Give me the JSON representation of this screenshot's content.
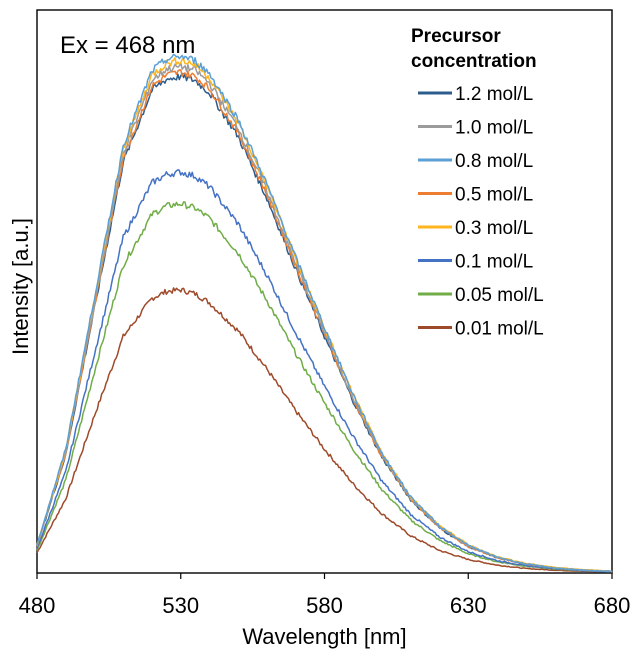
{
  "chart_data": {
    "type": "line",
    "xlabel": "Wavelength [nm]",
    "ylabel": "Intensity [a.u.]",
    "xlim": [
      480,
      680
    ],
    "ylim": [
      0,
      1.0
    ],
    "xticks": [
      480,
      530,
      580,
      630,
      680
    ],
    "xtick_labels": [
      "480",
      "530",
      "580",
      "630",
      "680"
    ],
    "y_tick_labels_shown": false,
    "grid": false,
    "annotation": "Ex = 468 nm",
    "legend": {
      "title_lines": [
        "Precursor",
        "concentration"
      ],
      "placement": "top-right"
    },
    "x": [
      480,
      490,
      500,
      510,
      520,
      525,
      530,
      535,
      540,
      550,
      560,
      570,
      580,
      590,
      600,
      610,
      620,
      630,
      640,
      650,
      660,
      670,
      680
    ],
    "series": [
      {
        "name": "1.2 mol/L",
        "color": "#2c5c8e",
        "values": [
          0.048,
          0.21,
          0.47,
          0.73,
          0.858,
          0.877,
          0.882,
          0.875,
          0.853,
          0.775,
          0.665,
          0.54,
          0.42,
          0.305,
          0.205,
          0.13,
          0.08,
          0.047,
          0.027,
          0.016,
          0.009,
          0.005,
          0.003
        ]
      },
      {
        "name": "1.0 mol/L",
        "color": "#9b9b9b",
        "values": [
          0.049,
          0.214,
          0.478,
          0.745,
          0.875,
          0.895,
          0.9,
          0.893,
          0.87,
          0.79,
          0.678,
          0.55,
          0.428,
          0.31,
          0.208,
          0.132,
          0.082,
          0.048,
          0.028,
          0.016,
          0.009,
          0.005,
          0.003
        ]
      },
      {
        "name": "0.8 mol/L",
        "color": "#5b9fd5",
        "values": [
          0.05,
          0.22,
          0.49,
          0.76,
          0.892,
          0.912,
          0.918,
          0.91,
          0.887,
          0.805,
          0.69,
          0.56,
          0.436,
          0.316,
          0.212,
          0.135,
          0.083,
          0.049,
          0.028,
          0.016,
          0.009,
          0.005,
          0.003
        ]
      },
      {
        "name": "0.5 mol/L",
        "color": "#ed7d31",
        "values": [
          0.048,
          0.212,
          0.474,
          0.738,
          0.865,
          0.884,
          0.89,
          0.882,
          0.86,
          0.782,
          0.672,
          0.545,
          0.425,
          0.308,
          0.206,
          0.131,
          0.081,
          0.047,
          0.027,
          0.016,
          0.009,
          0.005,
          0.003
        ]
      },
      {
        "name": "0.3 mol/L",
        "color": "#ffb51e",
        "values": [
          0.05,
          0.218,
          0.486,
          0.754,
          0.885,
          0.905,
          0.911,
          0.903,
          0.88,
          0.8,
          0.687,
          0.558,
          0.435,
          0.316,
          0.212,
          0.135,
          0.084,
          0.05,
          0.029,
          0.017,
          0.01,
          0.006,
          0.003
        ]
      },
      {
        "name": "0.1 mol/L",
        "color": "#4472c4",
        "values": [
          0.043,
          0.18,
          0.39,
          0.596,
          0.693,
          0.708,
          0.712,
          0.705,
          0.686,
          0.62,
          0.529,
          0.427,
          0.332,
          0.242,
          0.163,
          0.104,
          0.064,
          0.038,
          0.022,
          0.013,
          0.008,
          0.004,
          0.002
        ]
      },
      {
        "name": "0.05 mol/L",
        "color": "#70ad47",
        "values": [
          0.04,
          0.165,
          0.358,
          0.547,
          0.637,
          0.652,
          0.656,
          0.648,
          0.63,
          0.568,
          0.484,
          0.39,
          0.302,
          0.22,
          0.148,
          0.094,
          0.058,
          0.034,
          0.02,
          0.012,
          0.007,
          0.004,
          0.002
        ]
      },
      {
        "name": "0.01 mol/L",
        "color": "#9e4a2a",
        "values": [
          0.036,
          0.132,
          0.28,
          0.42,
          0.488,
          0.5,
          0.503,
          0.496,
          0.48,
          0.43,
          0.362,
          0.288,
          0.22,
          0.158,
          0.105,
          0.066,
          0.04,
          0.024,
          0.014,
          0.008,
          0.005,
          0.003,
          0.002
        ]
      }
    ]
  }
}
